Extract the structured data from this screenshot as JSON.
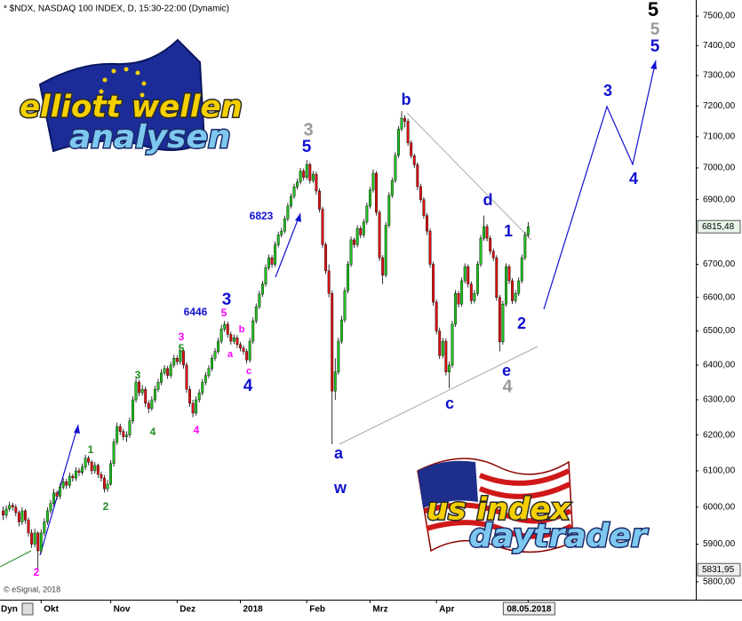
{
  "chart_data": {
    "type": "candlestick",
    "title": "* $NDX, NASDAQ 100 INDEX, D, 15:30-22:00 (Dynamic)",
    "source": "© eSignal, 2018",
    "mode_label": "Dyn",
    "up_color": "#1fc21f",
    "down_color": "#e01010",
    "log_scale": true,
    "ylim": [
      5753,
      7555
    ],
    "yticks": [
      {
        "value": 7500,
        "label": "7500,00"
      },
      {
        "value": 7400,
        "label": "7400,00"
      },
      {
        "value": 7300,
        "label": "7300,00"
      },
      {
        "value": 7200,
        "label": "7200,00"
      },
      {
        "value": 7100,
        "label": "7100,00"
      },
      {
        "value": 7000,
        "label": "7000,00"
      },
      {
        "value": 6900,
        "label": "6900,00"
      },
      {
        "value": 6700,
        "label": "6700,00"
      },
      {
        "value": 6600,
        "label": "6600,00"
      },
      {
        "value": 6500,
        "label": "6500,00"
      },
      {
        "value": 6400,
        "label": "6400,00"
      },
      {
        "value": 6300,
        "label": "6300,00"
      },
      {
        "value": 6200,
        "label": "6200,00"
      },
      {
        "value": 6100,
        "label": "6100,00"
      },
      {
        "value": 6000,
        "label": "6000,00"
      },
      {
        "value": 5900,
        "label": "5900,00"
      },
      {
        "value": 5800,
        "label": "5800,00"
      }
    ],
    "price_tags": [
      {
        "value": 6815.48,
        "label": "6815,48"
      },
      {
        "value": 5831.95,
        "label": "5831,95"
      }
    ],
    "xlim": [
      -1,
      219
    ],
    "xticks": [
      {
        "value": 12,
        "label": "Okt"
      },
      {
        "value": 34,
        "label": "Nov"
      },
      {
        "value": 55,
        "label": "Dez"
      },
      {
        "value": 75,
        "label": "2018"
      },
      {
        "value": 96,
        "label": "Feb"
      },
      {
        "value": 116,
        "label": "Mrz"
      },
      {
        "value": 137,
        "label": "Apr"
      },
      {
        "value": 166,
        "label": "08.05.2018"
      }
    ],
    "candles": [
      [
        5990,
        6002,
        5965,
        5978
      ],
      [
        5978,
        6005,
        5970,
        5995
      ],
      [
        5995,
        6015,
        5988,
        6005
      ],
      [
        6005,
        6012,
        5990,
        6000
      ],
      [
        6000,
        6008,
        5975,
        5985
      ],
      [
        5985,
        5992,
        5948,
        5960
      ],
      [
        5960,
        6000,
        5952,
        5990
      ],
      [
        5990,
        5995,
        5955,
        5965
      ],
      [
        5965,
        5972,
        5920,
        5930
      ],
      [
        5930,
        5940,
        5890,
        5900
      ],
      [
        5900,
        5942,
        5892,
        5930
      ],
      [
        5930,
        5935,
        5835,
        5882
      ],
      [
        5882,
        5940,
        5875,
        5930
      ],
      [
        5930,
        5970,
        5922,
        5960
      ],
      [
        5960,
        6000,
        5952,
        5990
      ],
      [
        5990,
        6020,
        5982,
        6010
      ],
      [
        6010,
        6050,
        6002,
        6039
      ],
      [
        6039,
        6045,
        6020,
        6030
      ],
      [
        6030,
        6065,
        6022,
        6055
      ],
      [
        6055,
        6080,
        6048,
        6070
      ],
      [
        6070,
        6078,
        6050,
        6060
      ],
      [
        6060,
        6095,
        6052,
        6085
      ],
      [
        6085,
        6092,
        6070,
        6080
      ],
      [
        6080,
        6110,
        6072,
        6100
      ],
      [
        6100,
        6108,
        6085,
        6095
      ],
      [
        6095,
        6120,
        6088,
        6110
      ],
      [
        6110,
        6145,
        6102,
        6135
      ],
      [
        6135,
        6142,
        6115,
        6124
      ],
      [
        6124,
        6130,
        6090,
        6100
      ],
      [
        6100,
        6125,
        6092,
        6115
      ],
      [
        6115,
        6120,
        6080,
        6090
      ],
      [
        6090,
        6098,
        6070,
        6080
      ],
      [
        6080,
        6088,
        6040,
        6050
      ],
      [
        6050,
        6075,
        6042,
        6063
      ],
      [
        6063,
        6130,
        6058,
        6120
      ],
      [
        6120,
        6190,
        6112,
        6180
      ],
      [
        6180,
        6235,
        6172,
        6224
      ],
      [
        6224,
        6232,
        6200,
        6210
      ],
      [
        6210,
        6218,
        6185,
        6195
      ],
      [
        6195,
        6210,
        6180,
        6200
      ],
      [
        6200,
        6250,
        6192,
        6240
      ],
      [
        6240,
        6310,
        6232,
        6300
      ],
      [
        6300,
        6362,
        6292,
        6351
      ],
      [
        6351,
        6358,
        6310,
        6320
      ],
      [
        6320,
        6342,
        6312,
        6330
      ],
      [
        6330,
        6338,
        6280,
        6290
      ],
      [
        6290,
        6298,
        6262,
        6275
      ],
      [
        6275,
        6310,
        6268,
        6300
      ],
      [
        6300,
        6340,
        6292,
        6330
      ],
      [
        6330,
        6360,
        6322,
        6350
      ],
      [
        6350,
        6388,
        6342,
        6377
      ],
      [
        6377,
        6400,
        6370,
        6390
      ],
      [
        6390,
        6398,
        6360,
        6370
      ],
      [
        6370,
        6410,
        6362,
        6400
      ],
      [
        6400,
        6430,
        6392,
        6420
      ],
      [
        6420,
        6428,
        6400,
        6410
      ],
      [
        6410,
        6452,
        6402,
        6442
      ],
      [
        6442,
        6450,
        6390,
        6400
      ],
      [
        6400,
        6408,
        6320,
        6330
      ],
      [
        6330,
        6340,
        6280,
        6290
      ],
      [
        6290,
        6300,
        6250,
        6262
      ],
      [
        6262,
        6310,
        6255,
        6300
      ],
      [
        6300,
        6330,
        6292,
        6320
      ],
      [
        6320,
        6360,
        6312,
        6350
      ],
      [
        6350,
        6380,
        6342,
        6370
      ],
      [
        6370,
        6400,
        6362,
        6390
      ],
      [
        6390,
        6430,
        6382,
        6420
      ],
      [
        6420,
        6450,
        6412,
        6440
      ],
      [
        6440,
        6480,
        6432,
        6470
      ],
      [
        6470,
        6518,
        6462,
        6506
      ],
      [
        6506,
        6530,
        6498,
        6520
      ],
      [
        6520,
        6528,
        6480,
        6490
      ],
      [
        6490,
        6498,
        6460,
        6470
      ],
      [
        6470,
        6490,
        6462,
        6480
      ],
      [
        6480,
        6488,
        6450,
        6460
      ],
      [
        6460,
        6468,
        6440,
        6450
      ],
      [
        6450,
        6458,
        6430,
        6440
      ],
      [
        6440,
        6448,
        6405,
        6415
      ],
      [
        6415,
        6480,
        6408,
        6470
      ],
      [
        6470,
        6540,
        6462,
        6530
      ],
      [
        6530,
        6582,
        6522,
        6572
      ],
      [
        6572,
        6620,
        6565,
        6610
      ],
      [
        6610,
        6650,
        6602,
        6640
      ],
      [
        6640,
        6700,
        6632,
        6690
      ],
      [
        6690,
        6730,
        6682,
        6720
      ],
      [
        6720,
        6728,
        6690,
        6700
      ],
      [
        6700,
        6770,
        6692,
        6760
      ],
      [
        6760,
        6800,
        6752,
        6790
      ],
      [
        6790,
        6812,
        6782,
        6802
      ],
      [
        6802,
        6850,
        6795,
        6840
      ],
      [
        6840,
        6890,
        6832,
        6880
      ],
      [
        6880,
        6920,
        6872,
        6910
      ],
      [
        6910,
        6950,
        6902,
        6940
      ],
      [
        6940,
        6965,
        6932,
        6955
      ],
      [
        6955,
        7000,
        6948,
        6990
      ],
      [
        6990,
        6998,
        6960,
        6970
      ],
      [
        6970,
        7025,
        6962,
        7011
      ],
      [
        7011,
        7018,
        6950,
        6960
      ],
      [
        6960,
        6990,
        6952,
        6980
      ],
      [
        6980,
        6988,
        6915,
        6927
      ],
      [
        6927,
        6935,
        6860,
        6870
      ],
      [
        6870,
        6878,
        6750,
        6760
      ],
      [
        6760,
        6768,
        6670,
        6680
      ],
      [
        6680,
        6700,
        6600,
        6612
      ],
      [
        6612,
        6620,
        6174,
        6325
      ],
      [
        6325,
        6420,
        6300,
        6380
      ],
      [
        6380,
        6480,
        6372,
        6470
      ],
      [
        6470,
        6545,
        6462,
        6533
      ],
      [
        6533,
        6630,
        6525,
        6620
      ],
      [
        6620,
        6710,
        6612,
        6700
      ],
      [
        6700,
        6785,
        6692,
        6775
      ],
      [
        6775,
        6782,
        6750,
        6760
      ],
      [
        6760,
        6820,
        6752,
        6810
      ],
      [
        6810,
        6818,
        6780,
        6790
      ],
      [
        6790,
        6840,
        6782,
        6830
      ],
      [
        6830,
        6890,
        6822,
        6880
      ],
      [
        6880,
        6940,
        6872,
        6930
      ],
      [
        6930,
        6995,
        6922,
        6983
      ],
      [
        6983,
        6990,
        6850,
        6860
      ],
      [
        6860,
        6868,
        6710,
        6720
      ],
      [
        6720,
        6728,
        6640,
        6667
      ],
      [
        6667,
        6830,
        6660,
        6820
      ],
      [
        6820,
        6923,
        6812,
        6913
      ],
      [
        6913,
        6970,
        6905,
        6960
      ],
      [
        6960,
        7050,
        6952,
        7040
      ],
      [
        7040,
        7135,
        7032,
        7125
      ],
      [
        7125,
        7183,
        7117,
        7160
      ],
      [
        7160,
        7170,
        7130,
        7150
      ],
      [
        7150,
        7158,
        7070,
        7080
      ],
      [
        7080,
        7088,
        7030,
        7039
      ],
      [
        7039,
        7046,
        7000,
        7010
      ],
      [
        7010,
        7018,
        6930,
        6941
      ],
      [
        6941,
        6950,
        6890,
        6900
      ],
      [
        6900,
        6908,
        6840,
        6850
      ],
      [
        6850,
        6858,
        6790,
        6802
      ],
      [
        6802,
        6810,
        6690,
        6700
      ],
      [
        6700,
        6708,
        6575,
        6586
      ],
      [
        6586,
        6594,
        6490,
        6500
      ],
      [
        6500,
        6510,
        6418,
        6428
      ],
      [
        6428,
        6480,
        6420,
        6470
      ],
      [
        6470,
        6478,
        6370,
        6380
      ],
      [
        6380,
        6410,
        6333,
        6400
      ],
      [
        6400,
        6530,
        6392,
        6520
      ],
      [
        6520,
        6622,
        6512,
        6612
      ],
      [
        6612,
        6620,
        6570,
        6580
      ],
      [
        6580,
        6660,
        6572,
        6650
      ],
      [
        6650,
        6703,
        6642,
        6693
      ],
      [
        6693,
        6700,
        6630,
        6640
      ],
      [
        6640,
        6648,
        6580,
        6590
      ],
      [
        6590,
        6622,
        6582,
        6612
      ],
      [
        6612,
        6710,
        6604,
        6700
      ],
      [
        6700,
        6790,
        6692,
        6780
      ],
      [
        6780,
        6850,
        6772,
        6816
      ],
      [
        6816,
        6824,
        6770,
        6780
      ],
      [
        6780,
        6788,
        6730,
        6740
      ],
      [
        6740,
        6748,
        6710,
        6720
      ],
      [
        6720,
        6728,
        6590,
        6600
      ],
      [
        6600,
        6608,
        6440,
        6468
      ],
      [
        6468,
        6590,
        6460,
        6580
      ],
      [
        6580,
        6703,
        6572,
        6693
      ],
      [
        6693,
        6700,
        6640,
        6650
      ],
      [
        6650,
        6658,
        6580,
        6590
      ],
      [
        6590,
        6622,
        6582,
        6612
      ],
      [
        6612,
        6660,
        6604,
        6650
      ],
      [
        6650,
        6730,
        6642,
        6720
      ],
      [
        6720,
        6800,
        6712,
        6790
      ],
      [
        6790,
        6830,
        6782,
        6815.48
      ]
    ],
    "wave_labels": [
      {
        "text": "5",
        "color": "#000000"
      },
      {
        "text": "5",
        "color": "#999999"
      },
      {
        "text": "5",
        "color": "#1010d0"
      },
      {
        "text": "3",
        "color": "#1010d0"
      },
      {
        "text": "4",
        "color": "#1010d0"
      },
      {
        "text": "b",
        "color": "#1010d0"
      },
      {
        "text": "3",
        "color": "#999999"
      },
      {
        "text": "5",
        "color": "#1010d0"
      },
      {
        "text": "d",
        "color": "#1010d0"
      },
      {
        "text": "1",
        "color": "#1010d0"
      },
      {
        "text": "2",
        "color": "#1010d0"
      },
      {
        "text": "e",
        "color": "#1010d0"
      },
      {
        "text": "4",
        "color": "#999999"
      },
      {
        "text": "c",
        "color": "#1010d0"
      },
      {
        "text": "a",
        "color": "#1010d0"
      },
      {
        "text": "w",
        "color": "#1010d0"
      },
      {
        "text": "6823",
        "color": "#1010d0"
      },
      {
        "text": "6446",
        "color": "#1010d0"
      },
      {
        "text": "3",
        "color": "#1010d0"
      },
      {
        "text": "5",
        "color": "#ff00ff"
      },
      {
        "text": "b",
        "color": "#ff00ff"
      },
      {
        "text": "a",
        "color": "#ff00ff"
      },
      {
        "text": "c",
        "color": "#ff00ff"
      },
      {
        "text": "4",
        "color": "#1010d0"
      },
      {
        "text": "3",
        "color": "#ff00ff"
      },
      {
        "text": "5",
        "color": "#228b22"
      },
      {
        "text": "4",
        "color": "#ff00ff"
      },
      {
        "text": "3",
        "color": "#228b22"
      },
      {
        "text": "4",
        "color": "#228b22"
      },
      {
        "text": "1",
        "color": "#228b22"
      },
      {
        "text": "2",
        "color": "#228b22"
      },
      {
        "text": "2",
        "color": "#ff00ff"
      }
    ]
  },
  "logos": {
    "eu": [
      "elliott wellen",
      "analysen"
    ],
    "us": [
      "us index",
      "daytrader"
    ]
  }
}
